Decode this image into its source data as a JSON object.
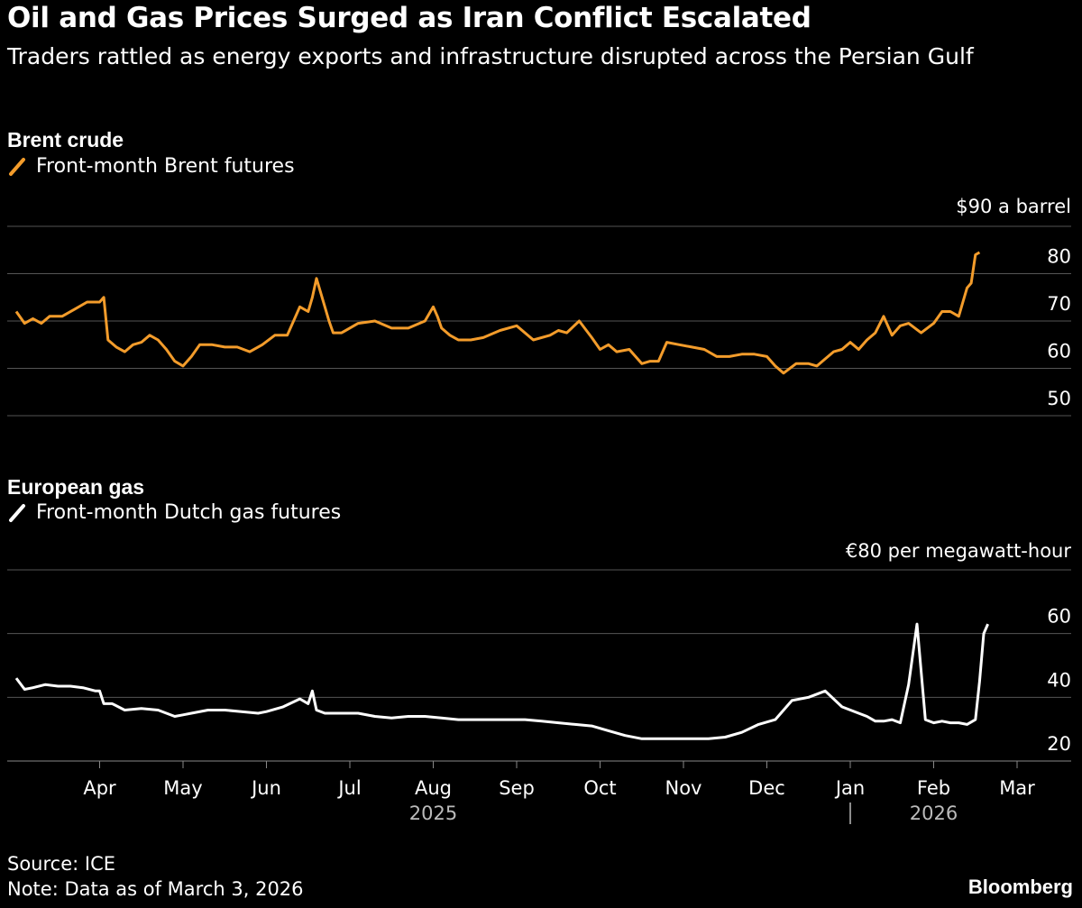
{
  "header": {
    "title": "Oil and Gas Prices Surged as Iran Conflict Escalated",
    "subtitle": "Traders rattled as energy exports and infrastructure disrupted across the Persian Gulf"
  },
  "colors": {
    "background": "#000000",
    "brent_line": "#f39c2b",
    "gas_line": "#ffffff",
    "gridline": "#555555",
    "text": "#ffffff"
  },
  "chart_data": [
    {
      "type": "line",
      "title": "Brent crude",
      "legend": "Front-month Brent futures",
      "unit_label": "$90 a barrel",
      "yticks": [
        50,
        60,
        70,
        80,
        90
      ],
      "ytick_labels": [
        "50",
        "60",
        "70",
        "80"
      ],
      "ylim": [
        50,
        90
      ],
      "xlim": [
        0,
        12
      ],
      "series": [
        {
          "name": "Front-month Brent futures",
          "x": [
            0.0,
            0.1,
            0.2,
            0.3,
            0.4,
            0.55,
            0.7,
            0.85,
            1.0,
            1.05,
            1.1,
            1.2,
            1.3,
            1.4,
            1.5,
            1.6,
            1.7,
            1.8,
            1.9,
            2.0,
            2.1,
            2.2,
            2.35,
            2.5,
            2.65,
            2.8,
            2.95,
            3.1,
            3.25,
            3.4,
            3.5,
            3.55,
            3.6,
            3.7,
            3.75,
            3.8,
            3.9,
            4.1,
            4.3,
            4.5,
            4.7,
            4.9,
            5.0,
            5.05,
            5.1,
            5.2,
            5.3,
            5.45,
            5.6,
            5.8,
            6.0,
            6.2,
            6.4,
            6.5,
            6.6,
            6.75,
            6.9,
            7.0,
            7.1,
            7.2,
            7.35,
            7.5,
            7.6,
            7.7,
            7.8,
            7.95,
            8.1,
            8.25,
            8.4,
            8.55,
            8.7,
            8.85,
            9.0,
            9.1,
            9.2,
            9.35,
            9.5,
            9.6,
            9.7,
            9.8,
            9.9,
            10.0,
            10.1,
            10.2,
            10.3,
            10.4,
            10.5,
            10.6,
            10.7,
            10.85,
            11.0,
            11.1,
            11.2,
            11.3,
            11.35,
            11.4,
            11.45,
            11.5,
            11.55
          ],
          "values": [
            72,
            69.5,
            70.5,
            69.5,
            71,
            71,
            72.5,
            74,
            74,
            75,
            66,
            64.5,
            63.5,
            65,
            65.5,
            67,
            66,
            64,
            61.5,
            60.5,
            62.5,
            65,
            65,
            64.5,
            64.5,
            63.5,
            65,
            67,
            67,
            73,
            72,
            75,
            79,
            73,
            70,
            67.5,
            67.5,
            69.5,
            70,
            68.5,
            68.5,
            70,
            73,
            71,
            68.5,
            67,
            66,
            66,
            66.5,
            68,
            69,
            66,
            67,
            68,
            67.5,
            70,
            66.5,
            64,
            65,
            63.5,
            64,
            61,
            61.5,
            61.5,
            65.5,
            65,
            64.5,
            64,
            62.5,
            62.5,
            63,
            63,
            62.5,
            60.5,
            59,
            61,
            61,
            60.5,
            62,
            63.5,
            64,
            65.5,
            64,
            66,
            67.5,
            71,
            67,
            69,
            69.5,
            67.5,
            69.5,
            72,
            72,
            71,
            74,
            77,
            78,
            84,
            84.5
          ]
        }
      ]
    },
    {
      "type": "line",
      "title": "European gas",
      "legend": "Front-month Dutch gas futures",
      "unit_label": "€80 per megawatt-hour",
      "yticks": [
        20,
        40,
        60,
        80
      ],
      "ytick_labels": [
        "20",
        "40",
        "60"
      ],
      "ylim": [
        20,
        80
      ],
      "xlim": [
        0,
        12
      ],
      "xticks": [
        1,
        2,
        3,
        4,
        5,
        6,
        7,
        8,
        9,
        10,
        11,
        12
      ],
      "xtick_labels": [
        "Apr",
        "May",
        "Jun",
        "Jul",
        "Aug",
        "Sep",
        "Oct",
        "Nov",
        "Dec",
        "Jan",
        "Feb",
        "Mar"
      ],
      "year_labels": [
        {
          "label": "2025",
          "x": 5
        },
        {
          "label": "2026",
          "x": 11
        }
      ],
      "year_divider_x": 10,
      "series": [
        {
          "name": "Front-month Dutch gas futures",
          "x": [
            0.0,
            0.1,
            0.2,
            0.35,
            0.5,
            0.65,
            0.8,
            0.95,
            1.0,
            1.05,
            1.15,
            1.3,
            1.5,
            1.7,
            1.9,
            2.0,
            2.1,
            2.3,
            2.5,
            2.7,
            2.9,
            3.0,
            3.2,
            3.4,
            3.5,
            3.55,
            3.6,
            3.7,
            3.9,
            4.1,
            4.3,
            4.5,
            4.7,
            4.9,
            5.1,
            5.3,
            5.5,
            5.7,
            5.9,
            6.1,
            6.3,
            6.5,
            6.7,
            6.9,
            7.1,
            7.3,
            7.5,
            7.7,
            7.9,
            8.1,
            8.3,
            8.5,
            8.7,
            8.9,
            9.1,
            9.3,
            9.5,
            9.7,
            9.9,
            10.1,
            10.2,
            10.3,
            10.4,
            10.5,
            10.6,
            10.7,
            10.8,
            10.9,
            11.0,
            11.1,
            11.2,
            11.3,
            11.4,
            11.5,
            11.55,
            11.6,
            11.65
          ],
          "values": [
            46,
            42.5,
            43,
            44,
            43.5,
            43.5,
            43,
            42,
            42,
            38,
            38,
            36,
            36.5,
            36,
            34,
            34.5,
            35,
            36,
            36,
            35.5,
            35,
            35.5,
            37,
            39.5,
            38,
            42,
            36,
            35,
            35,
            35,
            34,
            33.5,
            34,
            34,
            33.5,
            33,
            33,
            33,
            33,
            33,
            32.5,
            32,
            31.5,
            31,
            29.5,
            28,
            27,
            27,
            27,
            27,
            27,
            27.5,
            29,
            31.5,
            33,
            39,
            40,
            42,
            37,
            35,
            34,
            32.5,
            32.5,
            33,
            32,
            44,
            63,
            33,
            32,
            32.5,
            32,
            32,
            31.5,
            33,
            45,
            60,
            63
          ]
        }
      ]
    }
  ],
  "footer": {
    "source": "Source: ICE",
    "note": "Note: Data as of March 3, 2026",
    "brand": "Bloomberg"
  }
}
